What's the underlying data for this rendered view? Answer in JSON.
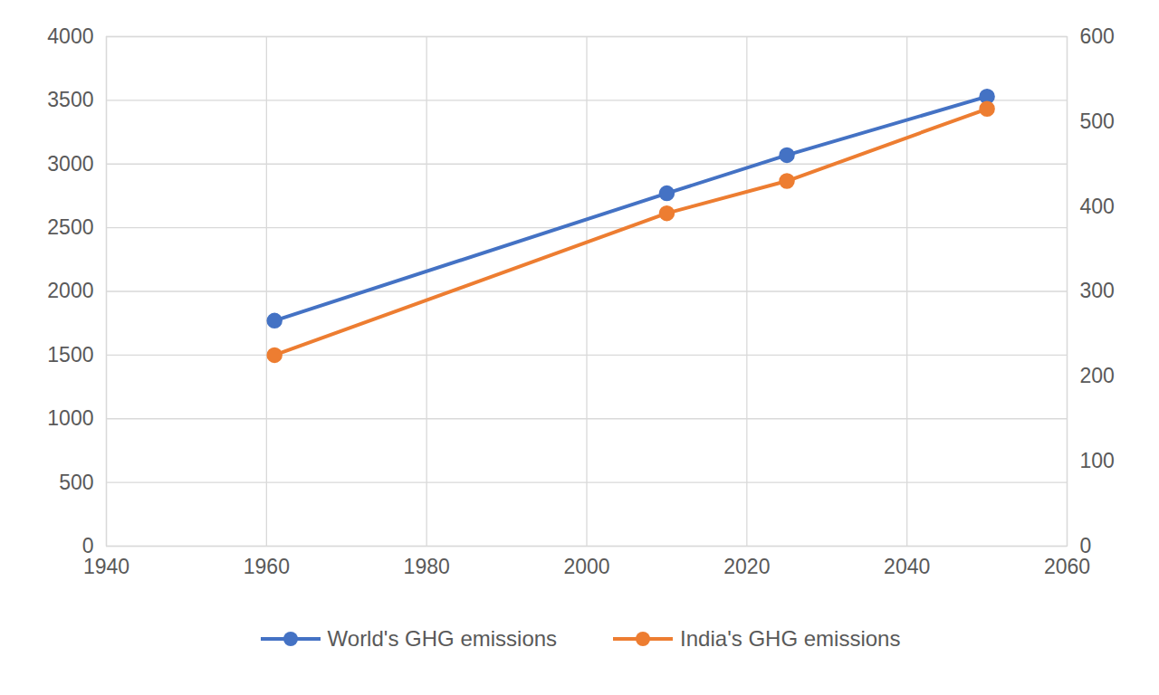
{
  "chart_data": {
    "type": "line",
    "x": [
      1961,
      2010,
      2025,
      2050
    ],
    "series": [
      {
        "name": "World's GHG emissions",
        "color": "#4472c4",
        "values": [
          1770,
          2770,
          3070,
          3530
        ],
        "marker": "circle"
      },
      {
        "name": "India's GHG emissions",
        "color": "#ed7d31",
        "values": [
          225,
          392,
          430,
          515
        ],
        "marker": "circle",
        "axis": "y2"
      }
    ],
    "xlim": [
      1940,
      2060
    ],
    "xticks": [
      1940,
      1960,
      1980,
      2000,
      2020,
      2040,
      2060
    ],
    "ylim": [
      0,
      4000
    ],
    "yticks": [
      0,
      500,
      1000,
      1500,
      2000,
      2500,
      3000,
      3500,
      4000
    ],
    "y2lim": [
      0,
      600
    ],
    "y2ticks": [
      0,
      100,
      200,
      300,
      400,
      500,
      600
    ],
    "grid": true,
    "legend": "bottom"
  }
}
